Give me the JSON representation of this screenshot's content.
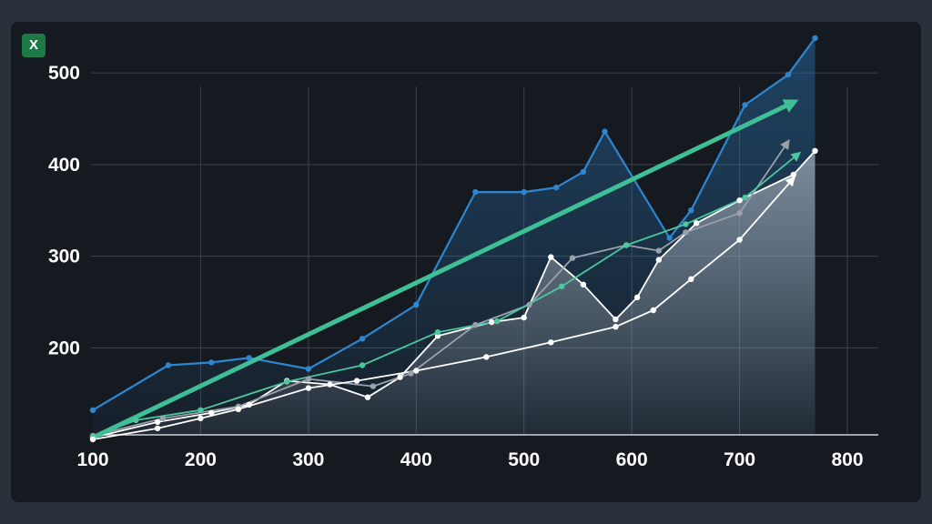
{
  "app": {
    "icon": "excel-icon",
    "icon_glyph": "X"
  },
  "colors": {
    "background": "#2b313a",
    "panel": "#151a21",
    "grid": "#3a414b",
    "tick_text": "#ffffff"
  },
  "chart_data": {
    "type": "line",
    "title": "",
    "xlabel": "",
    "ylabel": "",
    "x_ticks": [
      100,
      200,
      300,
      400,
      500,
      600,
      700,
      800
    ],
    "y_ticks": [
      200,
      300,
      400,
      500
    ],
    "xlim": [
      100,
      800
    ],
    "ylim": [
      105,
      525
    ],
    "grid": true,
    "legend": "none",
    "series": [
      {
        "color": "#2e86cf",
        "fill": true,
        "x": [
          100,
          170,
          210,
          245,
          300,
          350,
          400,
          455,
          500,
          530,
          555,
          575,
          635,
          655,
          705,
          745,
          770
        ],
        "y": [
          132,
          181,
          184,
          189,
          177,
          210,
          247,
          370,
          370,
          375,
          392,
          436,
          320,
          350,
          465,
          498,
          538
        ]
      },
      {
        "color": "#ffffff",
        "fill": true,
        "x": [
          100,
          160,
          210,
          245,
          280,
          320,
          355,
          385,
          420,
          470,
          500,
          525,
          555,
          585,
          605,
          625,
          660,
          700,
          750,
          770
        ],
        "y": [
          102,
          119,
          129,
          138,
          164,
          160,
          146,
          168,
          213,
          228,
          233,
          299,
          269,
          231,
          255,
          296,
          336,
          361,
          389,
          415
        ]
      },
      {
        "color": "#9aa1ab",
        "fill": false,
        "x": [
          100,
          165,
          235,
          300,
          360,
          395,
          455,
          505,
          545,
          595,
          625,
          650,
          700,
          745
        ],
        "y": [
          104,
          123,
          136,
          166,
          158,
          172,
          225,
          247,
          298,
          312,
          306,
          326,
          347,
          425
        ]
      },
      {
        "color": "#4cc79d",
        "fill": false,
        "x": [
          100,
          140,
          200,
          280,
          350,
          420,
          475,
          535,
          595,
          650,
          705,
          755
        ],
        "y": [
          103,
          121,
          132,
          163,
          181,
          217,
          229,
          267,
          312,
          335,
          364,
          412
        ]
      },
      {
        "color": "#ffffff",
        "fill": false,
        "x": [
          100,
          160,
          200,
          235,
          300,
          345,
          400,
          465,
          525,
          585,
          620,
          655,
          700,
          750
        ],
        "y": [
          100,
          112,
          123,
          133,
          156,
          164,
          175,
          190,
          206,
          223,
          241,
          275,
          318,
          385
        ]
      }
    ],
    "trend_arrow": {
      "color": "#3fbf95",
      "x": [
        100,
        750
      ],
      "y": [
        102,
        468
      ]
    }
  }
}
